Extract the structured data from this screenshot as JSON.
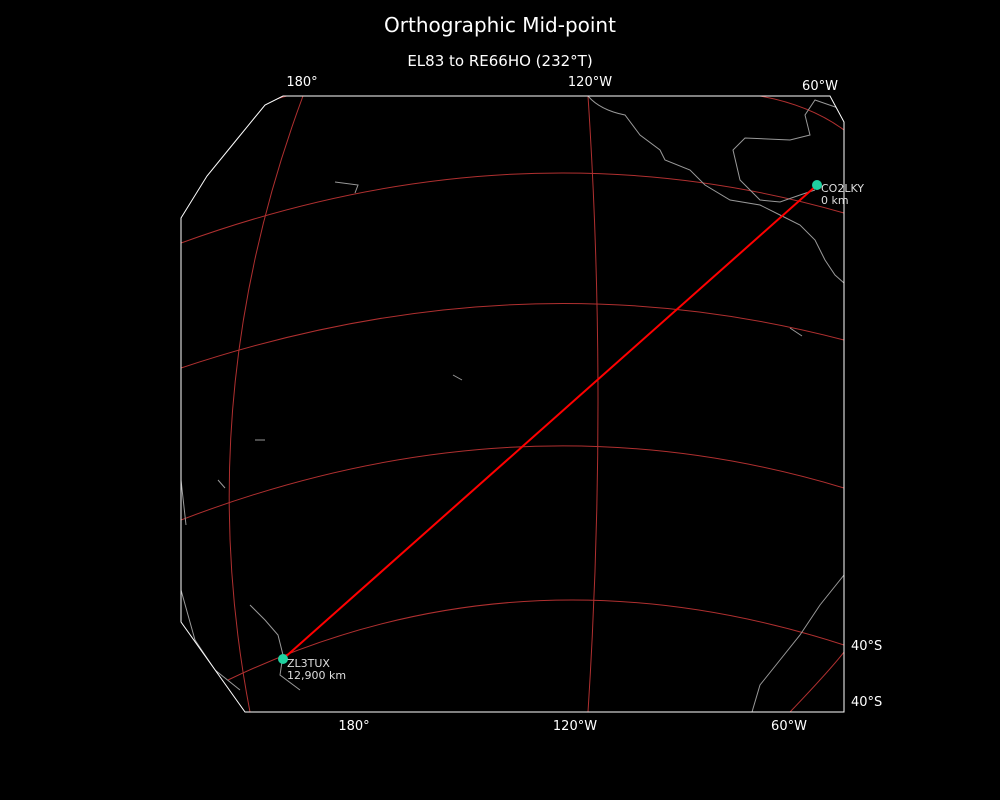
{
  "title": "Orthographic Mid-point",
  "subtitle": "EL83 to RE66HO (232°T)",
  "colors": {
    "background": "#000000",
    "gridlines": "#b03030",
    "path": "#ff0000",
    "marker": "#1fd1a0",
    "coastline": "#999999",
    "border": "#ffffff"
  },
  "ticks": {
    "top": [
      "180°",
      "120°W",
      "60°W"
    ],
    "bottom": [
      "180°",
      "120°W",
      "60°W"
    ],
    "right": [
      "40°S",
      "40°S"
    ]
  },
  "stations": [
    {
      "call": "CO2LKY",
      "distance": "0 km"
    },
    {
      "call": "ZL3TUX",
      "distance": "12,900 km"
    }
  ]
}
